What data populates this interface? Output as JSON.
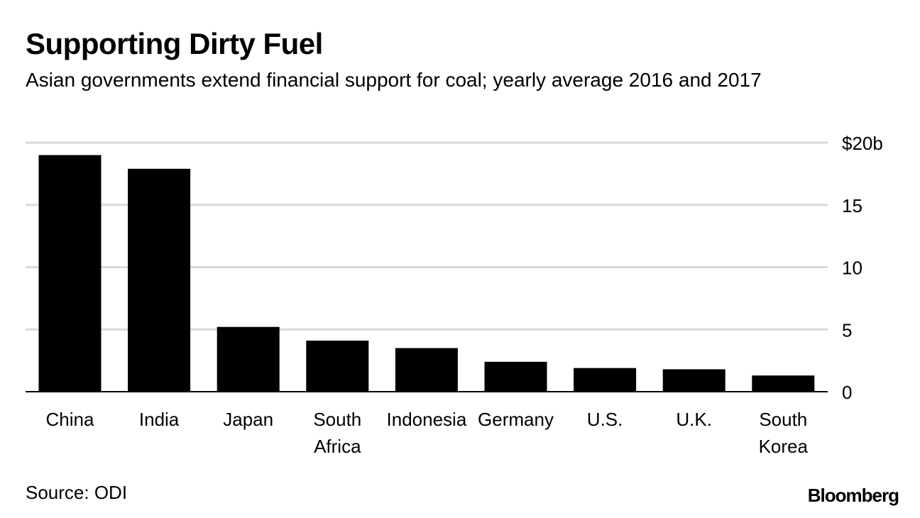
{
  "header": {
    "title": "Supporting Dirty Fuel",
    "subtitle": "Asian governments extend financial support for coal; yearly average 2016 and 2017"
  },
  "footer": {
    "source": "Source: ODI",
    "brand": "Bloomberg"
  },
  "colors": {
    "bar": "#000000",
    "grid": "#d9d9d9",
    "axis": "#000000"
  },
  "chart_data": {
    "type": "bar",
    "categories": [
      [
        "China"
      ],
      [
        "India"
      ],
      [
        "Japan"
      ],
      [
        "South",
        "Africa"
      ],
      [
        "Indonesia"
      ],
      [
        "Germany"
      ],
      [
        "U.S."
      ],
      [
        "U.K."
      ],
      [
        "South",
        "Korea"
      ]
    ],
    "values": [
      19.0,
      17.9,
      5.2,
      4.1,
      3.5,
      2.4,
      1.9,
      1.8,
      1.3
    ],
    "ylim": [
      0,
      20
    ],
    "yticks": [
      0,
      5,
      10,
      15,
      20
    ],
    "ytick_labels": [
      "0",
      "5",
      "10",
      "15",
      "$20b"
    ],
    "grid": true,
    "yaxis_side": "right"
  }
}
